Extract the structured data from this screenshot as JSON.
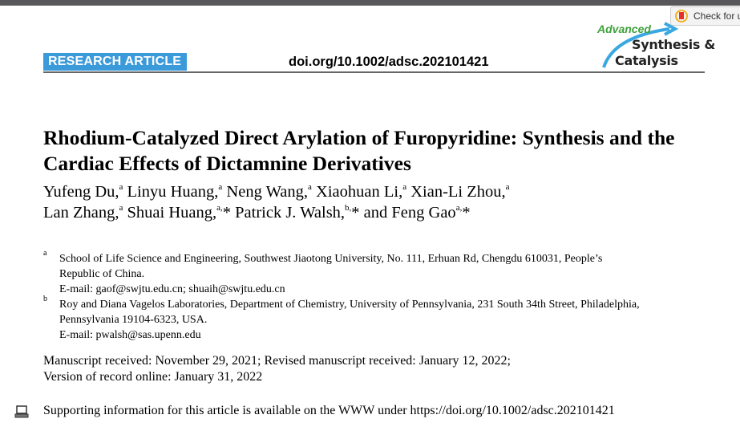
{
  "header": {
    "badge": "RESEARCH ARTICLE",
    "doi": "doi.org/10.1002/adsc.202101421",
    "logo": {
      "line1": "Advanced",
      "line2": "Synthesis &",
      "line3": "Catalysis"
    },
    "check_updates": "Check for updates"
  },
  "title": "Rhodium-Catalyzed Direct Arylation of Furopyridine: Synthesis and the Cardiac Effects of Dictamnine Derivatives",
  "authors": [
    {
      "name": "Yufeng Du,",
      "sup": "a"
    },
    {
      "name": "Linyu Huang,",
      "sup": "a"
    },
    {
      "name": "Neng Wang,",
      "sup": "a"
    },
    {
      "name": "Xiaohuan Li,",
      "sup": "a"
    },
    {
      "name": "Xian-Li Zhou,",
      "sup": "a"
    },
    {
      "name": "Lan Zhang,",
      "sup": "a"
    },
    {
      "name": "Shuai Huang,",
      "sup": "a,"
    },
    {
      "name": "* Patrick J. Walsh,",
      "sup": "b,"
    },
    {
      "name": "* and Feng Gao",
      "sup": "a,"
    },
    {
      "name": "*",
      "sup": ""
    }
  ],
  "affiliations": [
    {
      "mark": "a",
      "line1": "School of Life Science and Engineering, Southwest Jiaotong University, No. 111, Erhuan Rd, Chengdu 610031, People’s",
      "line2": "Republic of China.",
      "email": "E-mail: gaof@swjtu.edu.cn; shuaih@swjtu.edu.cn"
    },
    {
      "mark": "b",
      "line1": "Roy and Diana Vagelos Laboratories, Department of Chemistry, University of Pennsylvania, 231 South 34th Street, Philadelphia,",
      "line2": "Pennsylvania 19104-6323, USA.",
      "email": "E-mail: pwalsh@sas.upenn.edu"
    }
  ],
  "dates": {
    "line1": "Manuscript received: November 29, 2021; Revised manuscript received: January 12, 2022;",
    "line2": "Version of record online: January 31, 2022"
  },
  "supporting": {
    "icon": "laptop-icon",
    "text": "Supporting information for this article is available on the WWW under https://doi.org/10.1002/adsc.202101421"
  }
}
